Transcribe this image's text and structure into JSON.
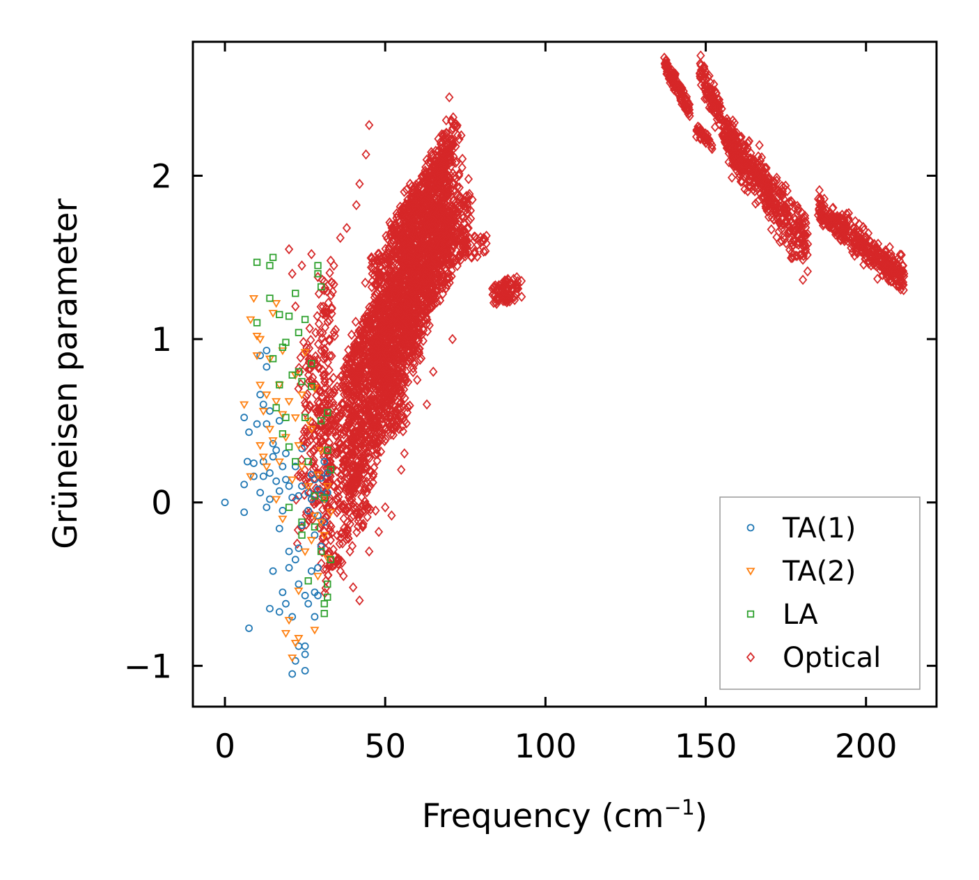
{
  "chart_data": {
    "type": "scatter",
    "title": "",
    "xlabel": "Frequency (cm",
    "xlabel_sup": "−1",
    "xlabel_close": ")",
    "ylabel": "Grüneisen parameter",
    "xlim": [
      -10,
      222
    ],
    "ylim": [
      -1.25,
      2.82
    ],
    "xticks": [
      0,
      50,
      100,
      150,
      200
    ],
    "xtick_labels": [
      "0",
      "50",
      "100",
      "150",
      "200"
    ],
    "yticks": [
      -1,
      0,
      1,
      2
    ],
    "ytick_labels": [
      "−1",
      "0",
      "1",
      "2"
    ],
    "grid": false,
    "legend_position": "lower-right",
    "series": [
      {
        "name": "TA(1)",
        "marker": "circle",
        "color": "#1f77b4",
        "points": [
          [
            0,
            0
          ],
          [
            6,
            0.52
          ],
          [
            6,
            0.11
          ],
          [
            6,
            -0.06
          ],
          [
            7,
            0.25
          ],
          [
            7.5,
            0.43
          ],
          [
            7.5,
            -0.77
          ],
          [
            9,
            0.24
          ],
          [
            9,
            0.16
          ],
          [
            10,
            0.48
          ],
          [
            11,
            0.66
          ],
          [
            11,
            0.9
          ],
          [
            11,
            0.06
          ],
          [
            12,
            0.25
          ],
          [
            12,
            0.6
          ],
          [
            12,
            0.16
          ],
          [
            13,
            0.93
          ],
          [
            13,
            0.83
          ],
          [
            13,
            0.48
          ],
          [
            13,
            -0.03
          ],
          [
            14,
            0.02
          ],
          [
            14,
            0.56
          ],
          [
            14,
            0.18
          ],
          [
            14,
            -0.65
          ],
          [
            15,
            0.36
          ],
          [
            15,
            0.28
          ],
          [
            15,
            -0.42
          ],
          [
            16,
            0.32
          ],
          [
            16,
            0.13
          ],
          [
            17,
            0.07
          ],
          [
            17,
            -0.16
          ],
          [
            17,
            -0.67
          ],
          [
            17,
            0.5
          ],
          [
            18,
            0.22
          ],
          [
            18,
            -0.05
          ],
          [
            18,
            -0.55
          ],
          [
            19,
            0.14
          ],
          [
            19,
            0.3
          ],
          [
            19,
            -0.62
          ],
          [
            20,
            -0.4
          ],
          [
            20,
            0.1
          ],
          [
            20,
            -0.3
          ],
          [
            21,
            0.03
          ],
          [
            21,
            -0.7
          ],
          [
            21,
            -1.05
          ],
          [
            22,
            -0.97
          ],
          [
            22,
            -0.35
          ],
          [
            22,
            0.22
          ],
          [
            23,
            -0.28
          ],
          [
            23,
            -0.5
          ],
          [
            23,
            -0.88
          ],
          [
            23,
            0.04
          ],
          [
            24,
            0.1
          ],
          [
            24,
            -0.14
          ],
          [
            24,
            0.33
          ],
          [
            25,
            -0.57
          ],
          [
            25,
            -1.03
          ],
          [
            25,
            -0.93
          ],
          [
            25,
            -0.88
          ],
          [
            26,
            -0.62
          ],
          [
            26,
            0.06
          ],
          [
            26,
            -0.05
          ],
          [
            27,
            0.17
          ],
          [
            27,
            0.02
          ],
          [
            27,
            -0.42
          ],
          [
            28,
            -0.55
          ],
          [
            28,
            -0.2
          ],
          [
            28,
            0.14
          ],
          [
            28,
            -0.7
          ],
          [
            29,
            0.08
          ],
          [
            29,
            -0.08
          ],
          [
            29,
            -0.4
          ],
          [
            29,
            -0.57
          ],
          [
            30,
            0.05
          ],
          [
            30,
            -0.27
          ],
          [
            30,
            0.15
          ],
          [
            31,
            0.02
          ],
          [
            31,
            -0.12
          ],
          [
            31,
            0.25
          ],
          [
            32,
            0.06
          ],
          [
            32,
            0.18
          ]
        ]
      },
      {
        "name": "TA(2)",
        "marker": "triangle-down",
        "color": "#ff7f0e",
        "points": [
          [
            6,
            0.6
          ],
          [
            8,
            0.16
          ],
          [
            8,
            1.12
          ],
          [
            9,
            1.25
          ],
          [
            10,
            0.9
          ],
          [
            10,
            1.02
          ],
          [
            11,
            0.35
          ],
          [
            11,
            0.72
          ],
          [
            11,
            1.0
          ],
          [
            12,
            0.28
          ],
          [
            12,
            0.56
          ],
          [
            13,
            0.22
          ],
          [
            13,
            0.66
          ],
          [
            14,
            0.45
          ],
          [
            14,
            0.88
          ],
          [
            15,
            1.16
          ],
          [
            15,
            0.38
          ],
          [
            16,
            1.22
          ],
          [
            16,
            0.62
          ],
          [
            16,
            0.02
          ],
          [
            17,
            0.72
          ],
          [
            17,
            0.25
          ],
          [
            18,
            0.54
          ],
          [
            18,
            -0.1
          ],
          [
            18,
            0.93
          ],
          [
            19,
            0.4
          ],
          [
            19,
            -0.8
          ],
          [
            20,
            -0.72
          ],
          [
            20,
            0.62
          ],
          [
            21,
            0.14
          ],
          [
            21,
            -0.95
          ],
          [
            22,
            0.52
          ],
          [
            22,
            0.78
          ],
          [
            22,
            -0.86
          ],
          [
            23,
            0.35
          ],
          [
            23,
            -0.54
          ],
          [
            23,
            -0.83
          ],
          [
            24,
            0.66
          ],
          [
            24,
            0.22
          ],
          [
            25,
            -0.3
          ],
          [
            25,
            0.92
          ],
          [
            26,
            0.1
          ],
          [
            26,
            0.5
          ],
          [
            27,
            -0.23
          ],
          [
            27,
            0.45
          ],
          [
            28,
            -0.78
          ],
          [
            28,
            0.7
          ],
          [
            28,
            -0.08
          ],
          [
            29,
            0.17
          ],
          [
            29,
            -0.45
          ],
          [
            30,
            0.32
          ],
          [
            30,
            -0.12
          ],
          [
            31,
            0.02
          ],
          [
            31,
            -0.2
          ],
          [
            32,
            -0.34
          ],
          [
            32,
            0.1
          ],
          [
            33,
            -0.06
          ]
        ]
      },
      {
        "name": "LA",
        "marker": "square",
        "color": "#2ca02c",
        "points": [
          [
            10,
            1.47
          ],
          [
            10,
            1.1
          ],
          [
            14,
            1.25
          ],
          [
            14,
            1.45
          ],
          [
            15,
            1.5
          ],
          [
            15,
            0.88
          ],
          [
            16,
            0.58
          ],
          [
            17,
            1.15
          ],
          [
            17,
            0.72
          ],
          [
            18,
            0.95
          ],
          [
            18,
            0.42
          ],
          [
            19,
            0.52
          ],
          [
            19,
            0.98
          ],
          [
            20,
            1.14
          ],
          [
            20,
            0.34
          ],
          [
            20,
            -0.03
          ],
          [
            21,
            0.78
          ],
          [
            22,
            0.25
          ],
          [
            22,
            1.28
          ],
          [
            23,
            0.8
          ],
          [
            23,
            1.04
          ],
          [
            24,
            0.74
          ],
          [
            24,
            -0.12
          ],
          [
            24,
            -0.2
          ],
          [
            25,
            1.12
          ],
          [
            25,
            0.52
          ],
          [
            26,
            0.25
          ],
          [
            26,
            -0.48
          ],
          [
            27,
            0.85
          ],
          [
            27,
            0.71
          ],
          [
            28,
            -0.15
          ],
          [
            28,
            0.04
          ],
          [
            29,
            1.45
          ],
          [
            29,
            1.4
          ],
          [
            30,
            1.32
          ],
          [
            30,
            0.5
          ],
          [
            30,
            -0.3
          ],
          [
            31,
            0.03
          ],
          [
            31,
            -0.62
          ],
          [
            31,
            -0.68
          ],
          [
            32,
            0.32
          ],
          [
            32,
            0.55
          ],
          [
            32,
            -0.5
          ],
          [
            32,
            -0.58
          ],
          [
            33,
            -0.35
          ],
          [
            33,
            0.2
          ]
        ]
      },
      {
        "name": "Optical",
        "marker": "diamond",
        "color": "#d62728",
        "points": [],
        "regions": [
          {
            "cx": [
              24,
              34
            ],
            "cy": [
              -0.3,
              1.5
            ],
            "n": 220,
            "corr": 0.05
          },
          {
            "cx": [
              30,
              46
            ],
            "cy": [
              -0.6,
              1.2
            ],
            "n": 420,
            "corr": 0.03
          },
          {
            "cx": [
              38,
              56
            ],
            "cy": [
              0.0,
              1.45
            ],
            "n": 700,
            "corr": 0.02
          },
          {
            "cx": [
              46,
              62
            ],
            "cy": [
              0.4,
              2.05
            ],
            "n": 900,
            "corr": 0.02
          },
          {
            "cx": [
              55,
              70
            ],
            "cy": [
              0.9,
              2.25
            ],
            "n": 850,
            "corr": 0.02
          },
          {
            "cx": [
              62,
              72
            ],
            "cy": [
              1.3,
              2.4
            ],
            "n": 300,
            "corr": 0.0
          },
          {
            "cx": [
              66,
              76
            ],
            "cy": [
              1.45,
              1.9
            ],
            "n": 150,
            "corr": 0.0
          },
          {
            "cx": [
              70,
              81
            ],
            "cy": [
              1.45,
              1.65
            ],
            "n": 60,
            "corr": 0.0
          },
          {
            "cx": [
              84,
              91
            ],
            "cy": [
              1.18,
              1.4
            ],
            "n": 90,
            "corr": 0.0
          }
        ],
        "bands": [
          {
            "x0": 137,
            "x1": 145,
            "y0": 2.68,
            "y1": 2.4,
            "n": 110,
            "spread": 0.03
          },
          {
            "x0": 148,
            "x1": 160,
            "y0": 2.66,
            "y1": 2.1,
            "n": 200,
            "spread": 0.05
          },
          {
            "x0": 147,
            "x1": 152,
            "y0": 2.28,
            "y1": 2.2,
            "n": 40,
            "spread": 0.02
          },
          {
            "x0": 158,
            "x1": 182,
            "y0": 2.2,
            "y1": 1.55,
            "n": 420,
            "spread": 0.08
          },
          {
            "x0": 185,
            "x1": 212,
            "y0": 1.8,
            "y1": 1.37,
            "n": 380,
            "spread": 0.05
          }
        ],
        "outliers": [
          [
            45,
            2.31
          ],
          [
            44,
            2.13
          ],
          [
            42,
            1.95
          ],
          [
            41,
            1.82
          ],
          [
            38,
            1.68
          ],
          [
            36,
            1.62
          ],
          [
            34,
            1.45
          ],
          [
            33,
            1.48
          ],
          [
            31,
            1.3
          ],
          [
            20,
            1.55
          ],
          [
            21,
            1.4
          ],
          [
            22,
            1.2
          ],
          [
            24,
            1.45
          ],
          [
            27,
            1.52
          ],
          [
            29,
            1.38
          ],
          [
            70,
            2.48
          ],
          [
            74,
            2.05
          ],
          [
            76,
            1.98
          ],
          [
            73,
            2.0
          ],
          [
            68,
            2.12
          ],
          [
            71,
            1.0
          ],
          [
            65,
            0.8
          ],
          [
            63,
            0.6
          ],
          [
            60,
            0.75
          ],
          [
            56,
            0.3
          ],
          [
            52,
            -0.08
          ],
          [
            50,
            -0.03
          ],
          [
            45,
            -0.3
          ],
          [
            43,
            -0.15
          ],
          [
            39,
            -0.3
          ],
          [
            42,
            -0.6
          ],
          [
            40,
            -0.52
          ],
          [
            37,
            -0.45
          ],
          [
            36,
            -0.42
          ],
          [
            48,
            -0.18
          ],
          [
            47,
            -0.05
          ],
          [
            55,
            0.2
          ]
        ]
      }
    ]
  }
}
